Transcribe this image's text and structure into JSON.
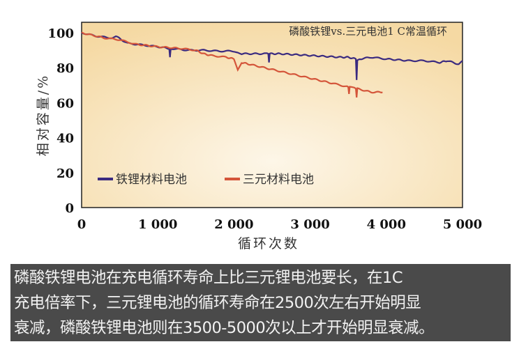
{
  "chart_data": {
    "type": "line",
    "annotation": "磷酸铁锂vs.三元电池1 C常温循环",
    "xlabel": "循环次数",
    "ylabel": "相对容量/%",
    "xlim": [
      0,
      5000
    ],
    "ylim": [
      0,
      106
    ],
    "xticks": [
      0,
      1000,
      2000,
      3000,
      4000,
      5000
    ],
    "xtick_labels": [
      "0",
      "1 000",
      "2 000",
      "3 000",
      "4 000",
      "5 000"
    ],
    "yticks": [
      0,
      20,
      40,
      60,
      80,
      100
    ],
    "grid": false,
    "legend_placement": "bottom-left",
    "background_gradient": [
      "#fdf6e8",
      "#f5d9a3"
    ],
    "series": [
      {
        "name": "铁锂材料电池",
        "color": "#3a2a80",
        "x": [
          0,
          200,
          400,
          450,
          600,
          800,
          1000,
          1150,
          1160,
          1170,
          1400,
          1600,
          1800,
          2000,
          2050,
          2100,
          2400,
          2450,
          2460,
          2470,
          2600,
          3000,
          3400,
          3500,
          3600,
          3610,
          3620,
          3650,
          3800,
          4000,
          4300,
          4500,
          4700,
          4800,
          4950,
          5000
        ],
        "y": [
          100,
          98,
          97,
          98,
          94,
          93,
          92,
          91,
          86,
          91,
          90,
          90,
          89.5,
          89.5,
          89,
          88,
          88,
          88,
          83,
          88,
          88,
          87,
          86,
          86,
          85,
          73,
          84,
          85,
          86,
          85,
          84,
          84,
          83,
          84,
          82,
          84
        ]
      },
      {
        "name": "三元材料电池",
        "color": "#d4553a",
        "x": [
          0,
          300,
          500,
          700,
          1000,
          1300,
          1500,
          1600,
          1700,
          1900,
          2000,
          2050,
          2100,
          2200,
          2500,
          3000,
          3300,
          3500,
          3510,
          3520,
          3600,
          3610,
          3620,
          3800,
          3950
        ],
        "y": [
          100,
          97,
          96,
          93.5,
          92,
          91,
          90,
          88,
          87,
          86,
          85,
          79,
          83,
          82,
          79,
          74,
          71,
          69,
          65,
          69,
          68,
          63,
          68,
          66,
          66
        ]
      }
    ]
  },
  "caption": "磷酸铁锂电池在充电循环寿命上比三元锂电池要长，在1C\n充电倍率下，三元锂电池的循环寿命在2500次左右开始明显\n衰减，磷酸铁锂电池则在3500-5000次以上才开始明显衰减。"
}
